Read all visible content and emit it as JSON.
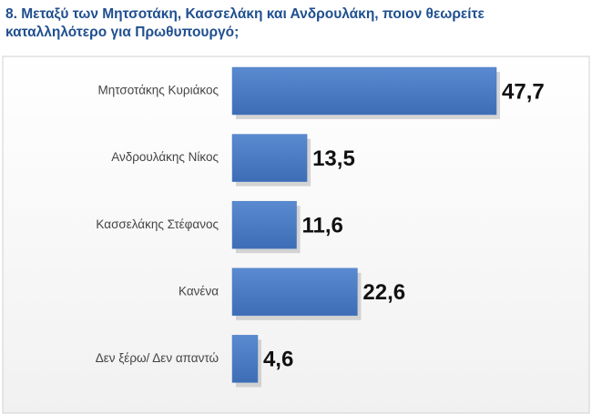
{
  "chart_data": {
    "type": "bar",
    "orientation": "horizontal",
    "title": "8. Μεταξύ των Μητσοτάκη, Κασσελάκη και Ανδρουλάκη, ποιον θεωρείτε καταλληλότερο για Πρωθυπουργό;",
    "categories": [
      "Μητσοτάκης Κυριάκος",
      "Ανδρουλάκης Νίκος",
      "Κασσελάκης Στέφανος",
      "Κανένα",
      "Δεν ξέρω/ Δεν απαντώ"
    ],
    "values": [
      47.7,
      13.5,
      11.6,
      22.6,
      4.6
    ],
    "value_labels": [
      "47,7",
      "13,5",
      "11,6",
      "22,6",
      "4,6"
    ],
    "color": "#4a7bc4"
  }
}
